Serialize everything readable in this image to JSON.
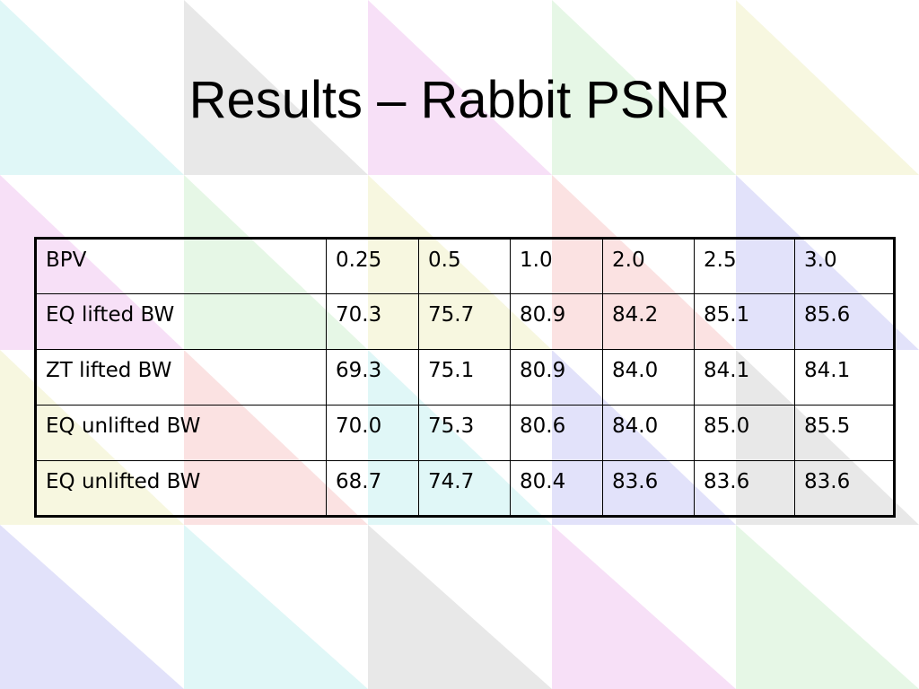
{
  "title": "Results – Rabbit PSNR",
  "table": {
    "rows": [
      [
        "BPV",
        "0.25",
        "0.5",
        "1.0",
        "2.0",
        "2.5",
        "3.0"
      ],
      [
        "EQ lifted BW",
        "70.3",
        "75.7",
        "80.9",
        "84.2",
        "85.1",
        "85.6"
      ],
      [
        "ZT lifted BW",
        "69.3",
        "75.1",
        "80.9",
        "84.0",
        "84.1",
        "84.1"
      ],
      [
        "EQ unlifted BW",
        "70.0",
        "75.3",
        "80.6",
        "84.0",
        "85.0",
        "85.5"
      ],
      [
        "EQ unlifted BW",
        "68.7",
        "74.7",
        "80.4",
        "83.6",
        "83.6",
        "83.6"
      ]
    ]
  }
}
